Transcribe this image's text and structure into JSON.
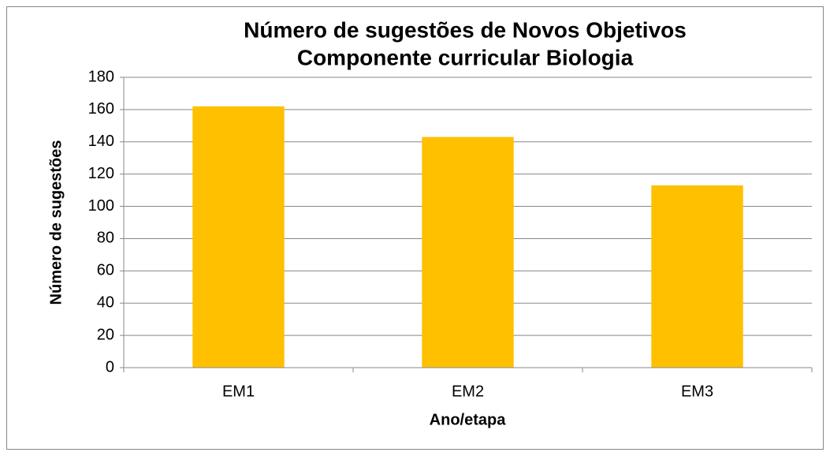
{
  "chart_data": {
    "type": "bar",
    "title": "Número de sugestões de Novos Objetivos",
    "subtitle": "Componente curricular Biologia",
    "x_label": "Ano/etapa",
    "y_label": "Número de sugestões",
    "categories": [
      "EM1",
      "EM2",
      "EM3"
    ],
    "values": [
      162,
      143,
      113
    ],
    "color": "#ffc000",
    "ylim": [
      0,
      180
    ],
    "yticks": [
      0,
      20,
      40,
      60,
      80,
      100,
      120,
      140,
      160,
      180
    ],
    "grid": true
  }
}
